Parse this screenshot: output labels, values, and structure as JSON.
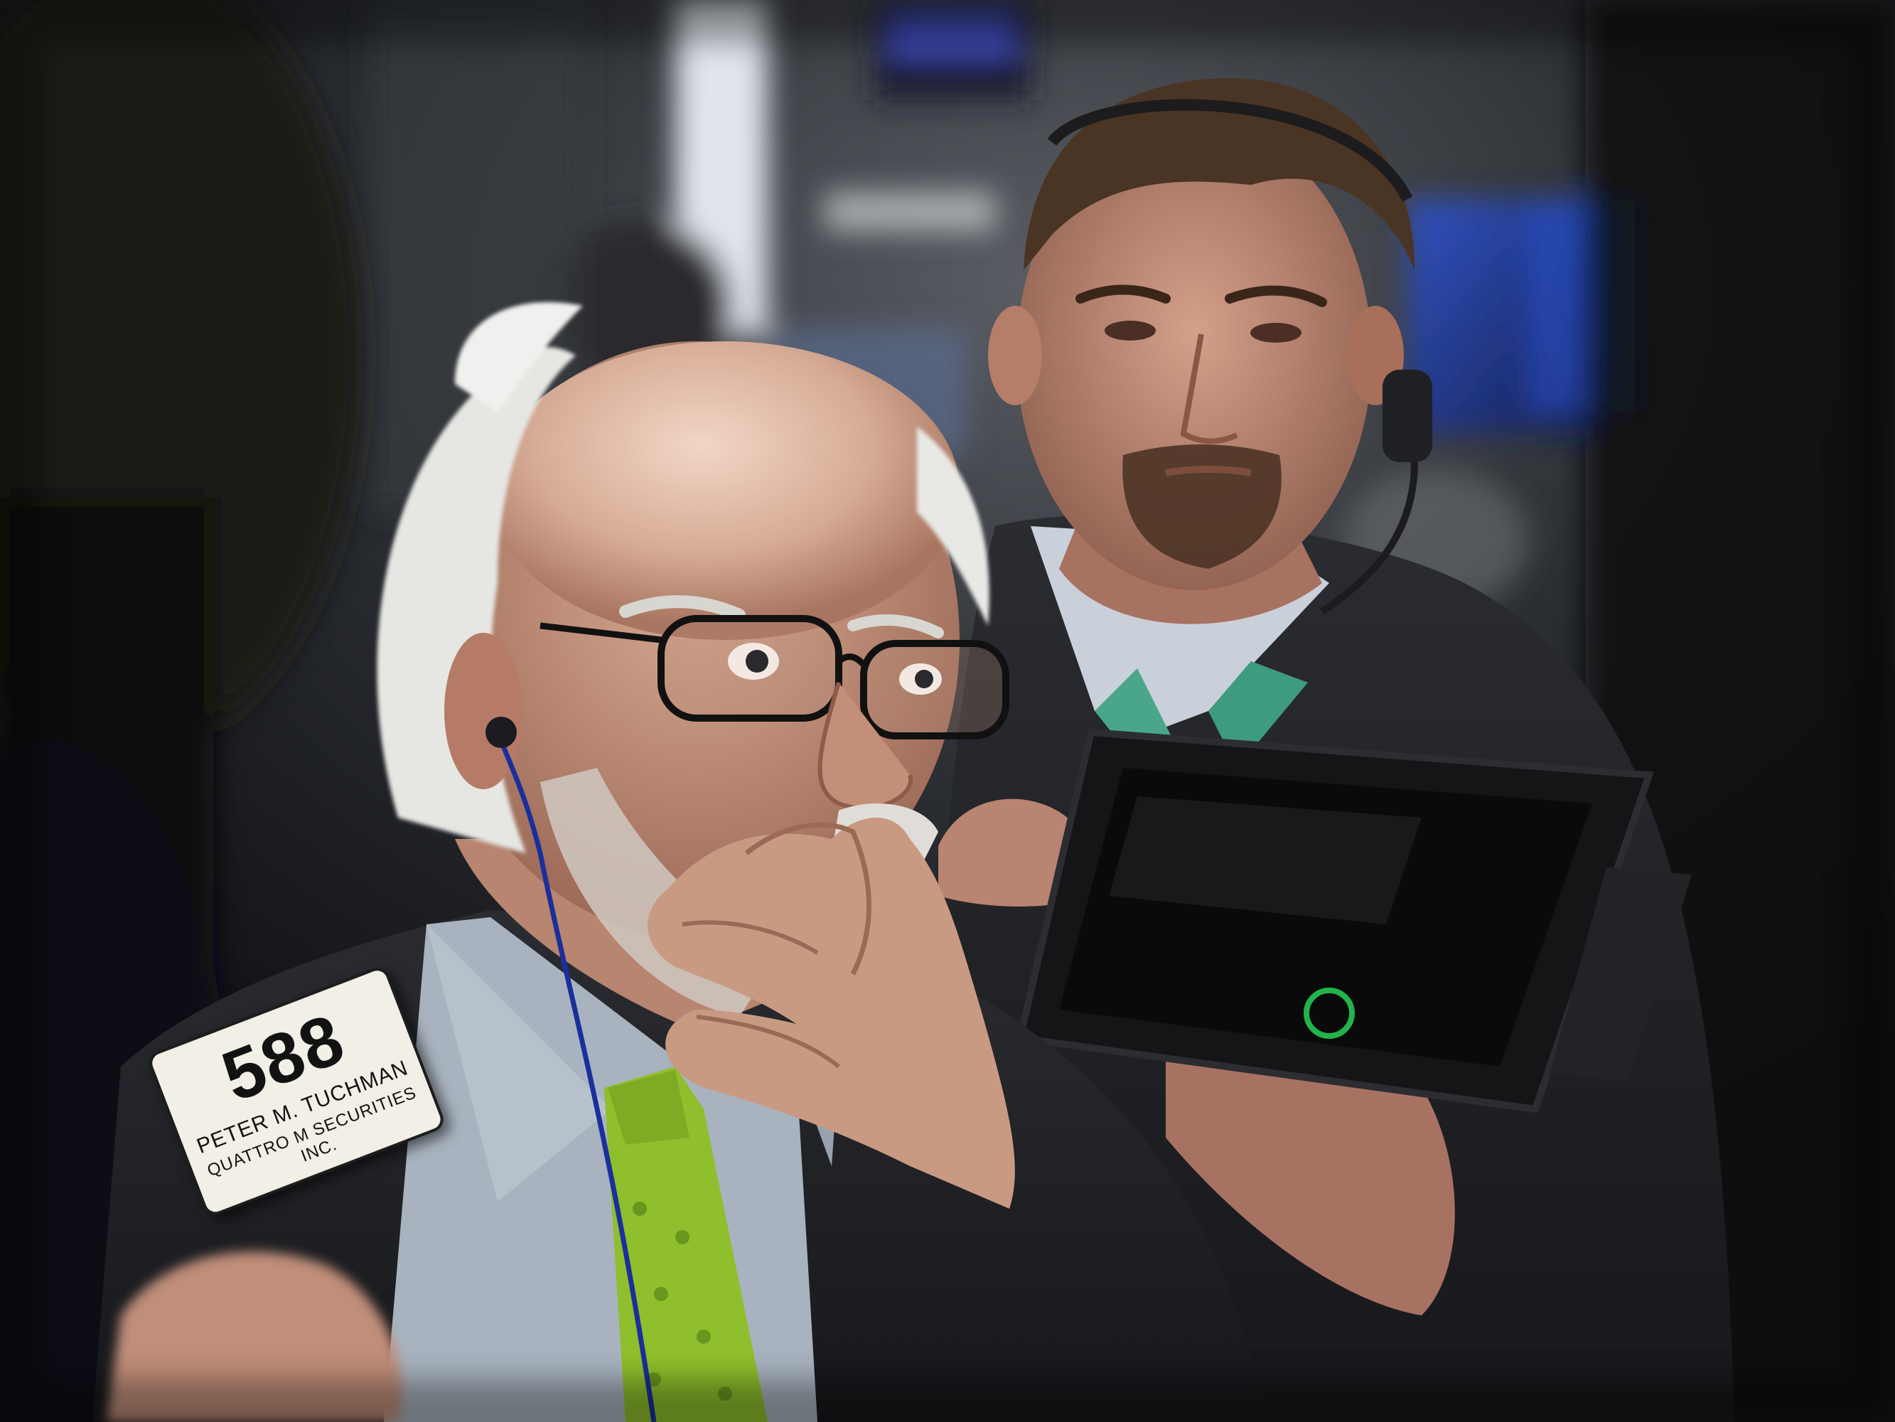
{
  "photo": {
    "colors": {
      "background": "#141619",
      "suit": "#25272c",
      "shirt": "#a9b4c0",
      "tie": "#8fbf2c",
      "skin": "#c99a82",
      "hair": "#e2e2df",
      "screen_glow": "#3b5fd6"
    }
  },
  "badge": {
    "number": "588",
    "name": "PETER M. TUCHMAN",
    "firm": "QUATTRO M SECURITIES INC."
  },
  "tablet": {
    "logo_icon": "power-ring-icon"
  }
}
